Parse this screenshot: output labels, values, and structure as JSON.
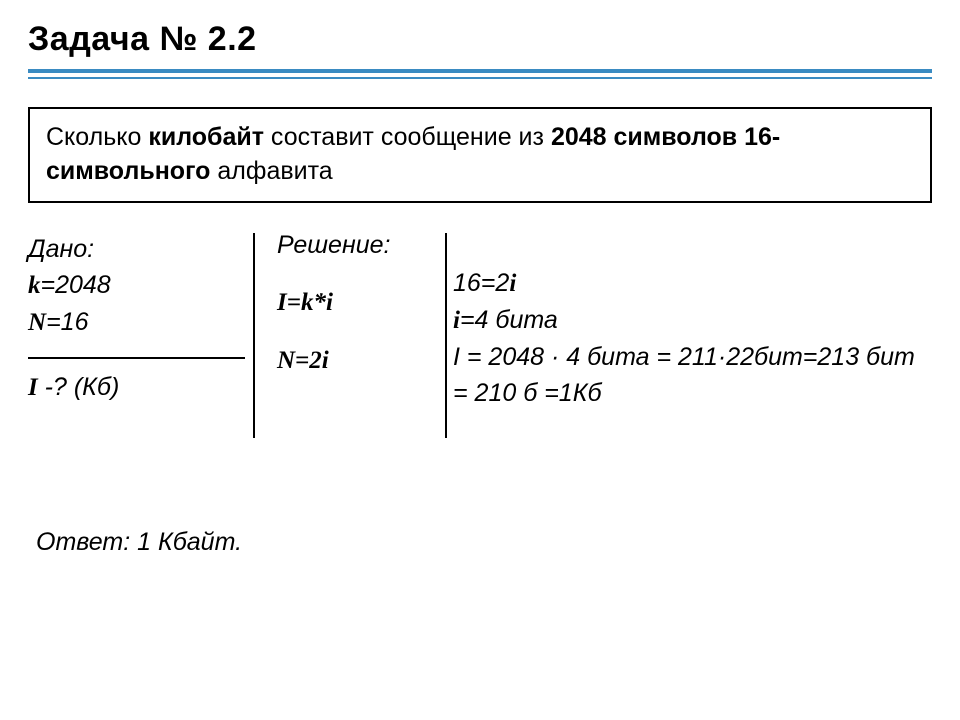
{
  "title": "Задача № 2.2",
  "title_rule_color": "#3a8bc2",
  "problem": {
    "pre": "Сколько ",
    "b1": "килобайт",
    "mid1": " составит сообщение из ",
    "b2": "2048 символов 16-символьного",
    "post": " алфавита"
  },
  "given": {
    "label": "Дано:",
    "line1_a": "k",
    "line1_b": "=2048",
    "line2_a": "N",
    "line2_b": "=16",
    "find_a": "I",
    "find_b": " -? (Кб)"
  },
  "solution": {
    "label": "Решение:",
    "formula1": "I=k*i",
    "formula2": "N=2i"
  },
  "calc": {
    "l1a": "16=2",
    "l1b": "i",
    "l2a": "i",
    "l2b": "=4 бита",
    "l3": "I = 2048 · 4 бита = 211·22бит=213 бит = 210 б =1Кб"
  },
  "answer": "Ответ: 1 Кбайт."
}
